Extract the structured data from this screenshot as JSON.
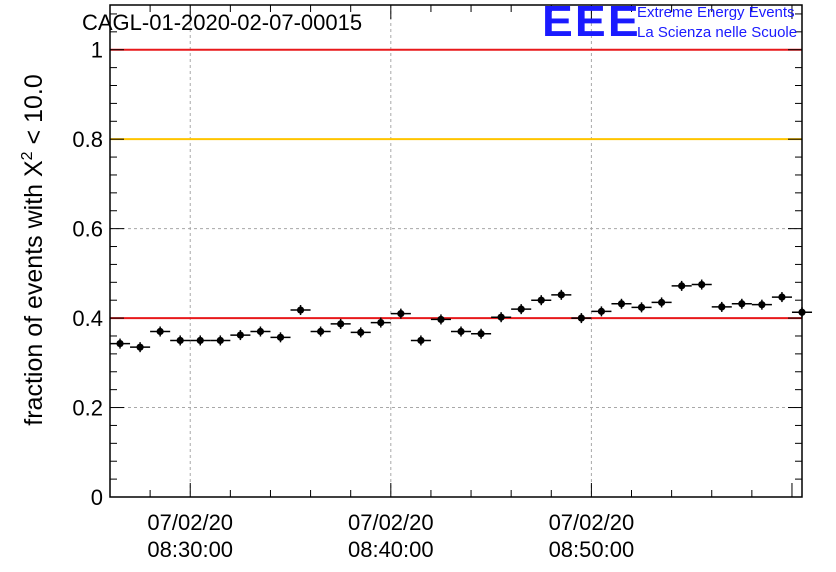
{
  "header": {
    "run_title": "CAGL-01-2020-02-07-00015",
    "logo_mark": "EEE",
    "logo_line1": "Extreme Energy Events",
    "logo_line2": "La Scienza nelle Scuole"
  },
  "chart_data": {
    "type": "scatter",
    "title": "CAGL-01-2020-02-07-00015",
    "ylabel_main": "fraction of events with X",
    "ylabel_sup": "2",
    "ylabel_tail": " < 10.0",
    "xlabel": "",
    "ylim": [
      0,
      1.1
    ],
    "yticks": [
      0,
      0.2,
      0.4,
      0.6,
      0.8,
      1
    ],
    "ytick_labels": [
      "0",
      "0.2",
      "0.4",
      "0.6",
      "0.8",
      "1"
    ],
    "xlim": [
      "08:26:00",
      "09:00:30"
    ],
    "xticks": [
      "08:30:00",
      "08:40:00",
      "08:50:00"
    ],
    "xtick_labels": [
      [
        "07/02/20",
        "08:30:00"
      ],
      [
        "07/02/20",
        "08:40:00"
      ],
      [
        "07/02/20",
        "08:50:00"
      ]
    ],
    "grid": true,
    "reference_lines": [
      {
        "y": 1.0,
        "color": "#e8191b"
      },
      {
        "y": 0.8,
        "color": "#ffc400"
      },
      {
        "y": 0.4,
        "color": "#e8191b"
      }
    ],
    "marker_color": "#000000",
    "series": [
      {
        "x": [
          "08:26:00",
          "08:27:00",
          "08:28:00",
          "08:29:00",
          "08:30:00",
          "08:31:00",
          "08:32:00",
          "08:33:00",
          "08:34:00",
          "08:35:00",
          "08:36:00",
          "08:37:00",
          "08:38:00",
          "08:39:00",
          "08:40:00",
          "08:41:00",
          "08:42:00",
          "08:43:00",
          "08:44:00",
          "08:45:00",
          "08:46:00",
          "08:47:00",
          "08:48:00",
          "08:49:00",
          "08:50:00",
          "08:51:00",
          "08:52:00",
          "08:53:00",
          "08:54:00",
          "08:55:00",
          "08:56:00",
          "08:57:00",
          "08:58:00",
          "08:59:00",
          "09:00:00"
        ],
        "y": [
          0.343,
          0.335,
          0.37,
          0.35,
          0.35,
          0.35,
          0.362,
          0.37,
          0.357,
          0.418,
          0.37,
          0.387,
          0.368,
          0.39,
          0.41,
          0.35,
          0.397,
          0.37,
          0.365,
          0.402,
          0.42,
          0.44,
          0.452,
          0.4,
          0.415,
          0.432,
          0.424,
          0.435,
          0.472,
          0.475,
          0.425,
          0.432,
          0.43,
          0.447,
          0.413
        ]
      }
    ]
  }
}
